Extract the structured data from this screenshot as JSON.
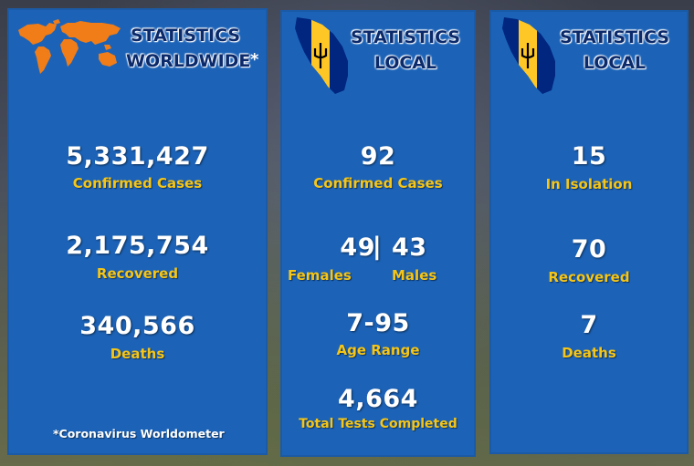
{
  "worldwide": {
    "heading_line1": "STATISTICS",
    "heading_line2": "WORLDWIDE",
    "asterisk": "*",
    "confirmed_value": "5,331,427",
    "confirmed_label": "Confirmed Cases",
    "recovered_value": "2,175,754",
    "recovered_label": "Recovered",
    "deaths_value": "340,566",
    "deaths_label": "Deaths",
    "source": "*Coronavirus Worldometer"
  },
  "local_1": {
    "heading_line1": "STATISTICS",
    "heading_line2": "LOCAL",
    "confirmed_value": "92",
    "confirmed_label": "Confirmed Cases",
    "females_value": "49",
    "separator": "|",
    "males_value": "43",
    "females_label": "Females",
    "males_label": "Males",
    "age_value": "7-95",
    "age_label": "Age Range",
    "tests_value": "4,664",
    "tests_label": "Total Tests Completed"
  },
  "local_2": {
    "heading_line1": "STATISTICS",
    "heading_line2": "LOCAL",
    "isolation_value": "15",
    "isolation_label": "In Isolation",
    "recovered_value": "70",
    "recovered_label": "Recovered",
    "deaths_value": "7",
    "deaths_label": "Deaths"
  },
  "icons": {
    "world": "world-map-icon",
    "local": "barbados-flag-map-icon"
  },
  "colors": {
    "panel": "#1c63b8",
    "heading": "#0b2a6b",
    "label": "#f5c518",
    "value": "#ffffff",
    "world_map": "#f07d18",
    "flag_blue": "#00267f",
    "flag_gold": "#ffc726"
  }
}
